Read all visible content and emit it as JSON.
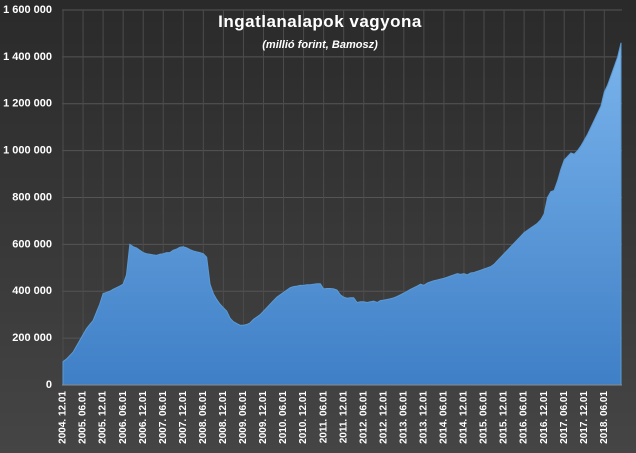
{
  "chart_data": {
    "type": "area",
    "title": "Ingatlanalapok  vagyona",
    "subtitle": "(millió  forint,  Bamosz)",
    "color": "#5b9bd5",
    "grid": true,
    "ylim": [
      0,
      1600000
    ],
    "yticks": [
      0,
      {
        "value": 200000,
        "label": "200 000"
      },
      {
        "value": 400000,
        "label": "400 000"
      },
      {
        "value": 600000,
        "label": "600 000"
      },
      {
        "value": 800000,
        "label": "800 000"
      },
      {
        "value": 1000000,
        "label": "1 000 000"
      },
      {
        "value": 1200000,
        "label": "1 200 000"
      },
      {
        "value": 1400000,
        "label": "1 400 000"
      },
      {
        "value": 1600000,
        "label": "1 600 000"
      }
    ],
    "categories": [
      "2004. 12.01",
      null,
      null,
      null,
      null,
      null,
      "2005. 06.01",
      null,
      null,
      null,
      null,
      null,
      "2005. 12.01",
      null,
      null,
      null,
      null,
      null,
      "2006. 06.01",
      null,
      null,
      null,
      null,
      null,
      "2006. 12.01",
      null,
      null,
      null,
      null,
      null,
      "2007. 06.01",
      null,
      null,
      null,
      null,
      null,
      "2007. 12.01",
      null,
      null,
      null,
      null,
      null,
      "2008. 06.01",
      null,
      null,
      null,
      null,
      null,
      "2008. 12.01",
      null,
      null,
      null,
      null,
      null,
      "2009. 06.01",
      null,
      null,
      null,
      null,
      null,
      "2009. 12.01",
      null,
      null,
      null,
      null,
      null,
      "2010. 06.01",
      null,
      null,
      null,
      null,
      null,
      "2010. 12.01",
      null,
      null,
      null,
      null,
      null,
      "2011. 06.01",
      null,
      null,
      null,
      null,
      null,
      "2011. 12.01",
      null,
      null,
      null,
      null,
      null,
      "2012. 06.01",
      null,
      null,
      null,
      null,
      null,
      "2012. 12.01",
      null,
      null,
      null,
      null,
      null,
      "2013. 06.01",
      null,
      null,
      null,
      null,
      null,
      "2013. 12.01",
      null,
      null,
      null,
      null,
      null,
      "2014. 06.01",
      null,
      null,
      null,
      null,
      null,
      "2014. 12.01",
      null,
      null,
      null,
      null,
      null,
      "2015. 06.01",
      null,
      null,
      null,
      null,
      null,
      "2015. 12.01",
      null,
      null,
      null,
      null,
      null,
      "2016. 06.01",
      null,
      null,
      null,
      null,
      null,
      "2016. 12.01",
      null,
      null,
      null,
      null,
      null,
      "2017. 06.01",
      null,
      null,
      null,
      null,
      null,
      "2017. 12.01",
      null,
      null,
      null,
      null,
      null,
      "2018. 06.01",
      null,
      null,
      null,
      null,
      null
    ],
    "values": [
      100000,
      110000,
      125000,
      140000,
      165000,
      190000,
      215000,
      240000,
      258000,
      275000,
      310000,
      345000,
      390000,
      395000,
      400000,
      408000,
      415000,
      422000,
      430000,
      470000,
      600000,
      590000,
      585000,
      575000,
      565000,
      560000,
      558000,
      555000,
      553000,
      558000,
      560000,
      565000,
      565000,
      575000,
      580000,
      588000,
      590000,
      585000,
      578000,
      572000,
      568000,
      565000,
      560000,
      545000,
      430000,
      390000,
      365000,
      345000,
      330000,
      315000,
      285000,
      270000,
      262000,
      255000,
      255000,
      258000,
      265000,
      280000,
      290000,
      300000,
      315000,
      330000,
      345000,
      360000,
      375000,
      385000,
      395000,
      405000,
      415000,
      420000,
      422000,
      425000,
      425000,
      428000,
      428000,
      430000,
      432000,
      432000,
      410000,
      412000,
      412000,
      410000,
      405000,
      385000,
      375000,
      370000,
      372000,
      372000,
      352000,
      355000,
      355000,
      352000,
      355000,
      358000,
      352000,
      360000,
      362000,
      365000,
      368000,
      372000,
      378000,
      385000,
      392000,
      400000,
      408000,
      415000,
      422000,
      430000,
      425000,
      435000,
      440000,
      445000,
      448000,
      452000,
      455000,
      460000,
      465000,
      470000,
      475000,
      472000,
      475000,
      470000,
      478000,
      480000,
      485000,
      490000,
      495000,
      500000,
      505000,
      515000,
      530000,
      545000,
      560000,
      575000,
      590000,
      605000,
      620000,
      635000,
      650000,
      660000,
      670000,
      680000,
      690000,
      705000,
      730000,
      800000,
      825000,
      830000,
      870000,
      920000,
      960000,
      975000,
      990000,
      985000,
      1000000,
      1020000,
      1045000,
      1070000,
      1100000,
      1130000,
      1160000,
      1190000,
      1250000,
      1280000,
      1320000,
      1360000,
      1400000,
      1460000
    ]
  }
}
